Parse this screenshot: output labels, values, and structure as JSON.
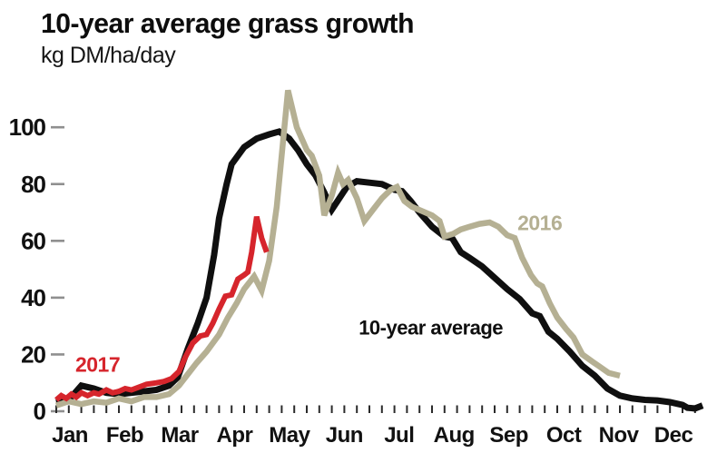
{
  "header": {
    "title": "10-year average grass growth",
    "subtitle": "kg DM/ha/day"
  },
  "chart_data": {
    "type": "line",
    "title": "10-year average grass growth",
    "ylabel": "kg DM/ha/day",
    "grid": false,
    "legend_position": "inline-annotations",
    "x_axis": {
      "unit": "week-of-year",
      "weeks": 52,
      "tick_interval": 1,
      "month_labels": [
        "Jan",
        "Feb",
        "Mar",
        "Apr",
        "May",
        "Jun",
        "Jul",
        "Aug",
        "Sep",
        "Oct",
        "Nov",
        "Dec"
      ]
    },
    "y_axis": {
      "ticks": [
        0,
        20,
        40,
        60,
        80,
        100
      ],
      "range": [
        0,
        115
      ]
    },
    "series": [
      {
        "name": "10-year average",
        "color": "#0f0f0f",
        "points": [
          [
            1,
            3
          ],
          [
            2,
            4
          ],
          [
            3,
            9
          ],
          [
            4,
            8
          ],
          [
            5,
            6.5
          ],
          [
            6,
            6
          ],
          [
            7,
            6.5
          ],
          [
            8,
            7
          ],
          [
            9,
            7.5
          ],
          [
            10,
            9
          ],
          [
            10.7,
            12
          ],
          [
            11.5,
            22
          ],
          [
            12.3,
            31
          ],
          [
            13,
            40
          ],
          [
            13.6,
            55
          ],
          [
            14,
            68
          ],
          [
            14.6,
            80
          ],
          [
            15,
            87
          ],
          [
            16,
            93
          ],
          [
            17,
            96
          ],
          [
            18,
            97.5
          ],
          [
            18.8,
            98.5
          ],
          [
            19.6,
            96
          ],
          [
            20.3,
            92
          ],
          [
            21,
            87
          ],
          [
            21.7,
            83
          ],
          [
            22.4,
            77
          ],
          [
            23,
            71
          ],
          [
            23.6,
            75
          ],
          [
            24.2,
            79
          ],
          [
            25,
            81
          ],
          [
            26,
            80.5
          ],
          [
            27,
            80
          ],
          [
            28,
            78
          ],
          [
            28.6,
            77.5
          ],
          [
            29.3,
            74
          ],
          [
            30,
            70
          ],
          [
            31,
            65
          ],
          [
            32,
            61.5
          ],
          [
            32.6,
            61
          ],
          [
            33.3,
            56
          ],
          [
            34,
            54
          ],
          [
            35,
            51
          ],
          [
            36,
            47
          ],
          [
            37,
            43
          ],
          [
            38,
            39.5
          ],
          [
            39,
            34.5
          ],
          [
            39.6,
            33.5
          ],
          [
            40.3,
            28
          ],
          [
            41,
            25.5
          ],
          [
            42,
            21
          ],
          [
            43,
            16
          ],
          [
            44,
            12.5
          ],
          [
            45,
            8
          ],
          [
            46,
            5.5
          ],
          [
            47,
            4.5
          ],
          [
            48,
            4
          ],
          [
            49,
            3.8
          ],
          [
            50,
            3.2
          ],
          [
            51,
            2.2
          ],
          [
            51.4,
            1.2
          ],
          [
            52,
            1
          ],
          [
            52.6,
            2
          ]
        ]
      },
      {
        "name": "2016",
        "color": "#b5b093",
        "points": [
          [
            1,
            2
          ],
          [
            2,
            3.5
          ],
          [
            3,
            2.5
          ],
          [
            4,
            3.5
          ],
          [
            5,
            3
          ],
          [
            6,
            4.5
          ],
          [
            7,
            3.5
          ],
          [
            8,
            5
          ],
          [
            9,
            5
          ],
          [
            10,
            6
          ],
          [
            10.8,
            9
          ],
          [
            11.5,
            13
          ],
          [
            12.2,
            17
          ],
          [
            13,
            21
          ],
          [
            14,
            27
          ],
          [
            14.7,
            33
          ],
          [
            15.4,
            38
          ],
          [
            16,
            43
          ],
          [
            16.8,
            47.5
          ],
          [
            17.4,
            42.5
          ],
          [
            18,
            53
          ],
          [
            18.6,
            72
          ],
          [
            19.5,
            113
          ],
          [
            20.2,
            100
          ],
          [
            21,
            92
          ],
          [
            21.4,
            90
          ],
          [
            22,
            83
          ],
          [
            22.4,
            69
          ],
          [
            23,
            76
          ],
          [
            23.5,
            84
          ],
          [
            23.9,
            80
          ],
          [
            24.3,
            81.5
          ],
          [
            25,
            75
          ],
          [
            25.6,
            67
          ],
          [
            26.3,
            71
          ],
          [
            27,
            75
          ],
          [
            27.7,
            78
          ],
          [
            28.2,
            79
          ],
          [
            28.8,
            74
          ],
          [
            29.4,
            72
          ],
          [
            30.2,
            70.5
          ],
          [
            31,
            69
          ],
          [
            31.6,
            67
          ],
          [
            32,
            61.5
          ],
          [
            32.7,
            62.5
          ],
          [
            33.3,
            64
          ],
          [
            34,
            65
          ],
          [
            34.8,
            66
          ],
          [
            35.6,
            66.5
          ],
          [
            36.3,
            65
          ],
          [
            37,
            62
          ],
          [
            37.6,
            61
          ],
          [
            38.2,
            54
          ],
          [
            38.9,
            48
          ],
          [
            39.4,
            45
          ],
          [
            39.8,
            44
          ],
          [
            40.4,
            38
          ],
          [
            41,
            33
          ],
          [
            41.7,
            29
          ],
          [
            42.3,
            26
          ],
          [
            43,
            20
          ],
          [
            43.8,
            17.5
          ],
          [
            44.3,
            16
          ],
          [
            45.1,
            13.5
          ],
          [
            46,
            12.5
          ]
        ]
      },
      {
        "name": "2017",
        "color": "#d6252c",
        "points": [
          [
            1,
            4
          ],
          [
            1.4,
            5.5
          ],
          [
            1.8,
            4.5
          ],
          [
            2.2,
            6
          ],
          [
            2.6,
            5
          ],
          [
            3,
            6.5
          ],
          [
            3.5,
            5.5
          ],
          [
            4,
            6.5
          ],
          [
            4.4,
            6
          ],
          [
            5,
            7.5
          ],
          [
            5.5,
            6.5
          ],
          [
            6,
            7
          ],
          [
            6.5,
            8
          ],
          [
            7,
            7.5
          ],
          [
            7.6,
            8.5
          ],
          [
            8.2,
            9.5
          ],
          [
            9,
            10
          ],
          [
            9.6,
            10.5
          ],
          [
            10.2,
            11.5
          ],
          [
            10.8,
            14
          ],
          [
            11.3,
            19
          ],
          [
            11.9,
            24
          ],
          [
            12.5,
            26.5
          ],
          [
            13,
            27
          ],
          [
            13.5,
            31
          ],
          [
            14,
            36
          ],
          [
            14.5,
            40.5
          ],
          [
            15,
            41
          ],
          [
            15.5,
            46.5
          ],
          [
            16,
            48
          ],
          [
            16.3,
            49
          ],
          [
            16.6,
            56
          ],
          [
            17,
            68.5
          ],
          [
            17.4,
            61
          ],
          [
            17.8,
            56
          ]
        ]
      }
    ],
    "annotations": [
      {
        "text": "2017",
        "color": "#d6252c",
        "week": 4.3,
        "value": 16.5,
        "size": 23
      },
      {
        "text": "10-year average",
        "color": "#0f0f0f",
        "week": 30.9,
        "value": 29.5,
        "size": 22
      },
      {
        "text": "2016",
        "color": "#b5b093",
        "week": 39.6,
        "value": 66.5,
        "size": 23
      }
    ]
  },
  "style": {
    "y_tick_color": "#8f8f8f",
    "x_tick_color": "#2a2a2a",
    "axis_label_color": "#111111",
    "series_stroke_widths": [
      7,
      6.5,
      6
    ]
  }
}
